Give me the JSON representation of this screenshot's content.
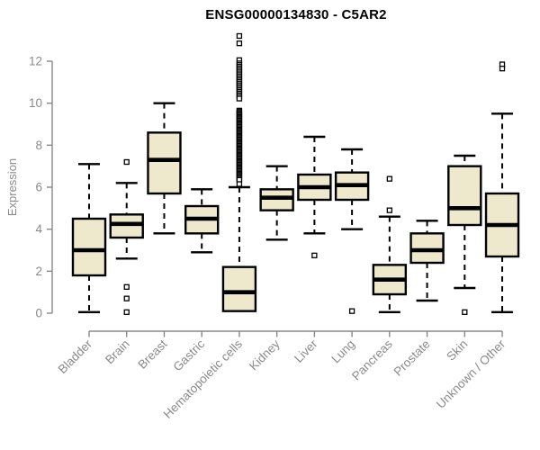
{
  "colors": {
    "box_fill": "#EEE8CD",
    "box_stroke": "#000000",
    "median_color": "#000000",
    "axis_color": "#888888",
    "tick_label_color": "#8a8a8a",
    "title_color": "#000000",
    "background": "#FFFFFF",
    "outlier_fill": "#FFFFFF"
  },
  "chart_data": {
    "type": "boxplot",
    "title": "ENSG00000134830 - C5AR2",
    "xlabel": "",
    "ylabel": "Expression",
    "ylim": [
      0,
      13.3
    ],
    "y_ticks": [
      0,
      2,
      4,
      6,
      8,
      10,
      12
    ],
    "grid": false,
    "legend": null,
    "categories": [
      "Bladder",
      "Brain",
      "Breast",
      "Gastric",
      "Hematopoietic cells",
      "Kidney",
      "Liver",
      "Lung",
      "Pancreas",
      "Prostate",
      "Skin",
      "Unknown / Other"
    ],
    "boxes": [
      {
        "category": "Bladder",
        "whisker_low": 0.05,
        "q1": 1.8,
        "median": 3.0,
        "q3": 4.5,
        "whisker_high": 7.1,
        "outliers": []
      },
      {
        "category": "Brain",
        "whisker_low": 2.6,
        "q1": 3.6,
        "median": 4.25,
        "q3": 4.7,
        "whisker_high": 6.2,
        "outliers": [
          7.2,
          1.25,
          0.7,
          0.05
        ]
      },
      {
        "category": "Breast",
        "whisker_low": 3.8,
        "q1": 5.7,
        "median": 7.3,
        "q3": 8.6,
        "whisker_high": 10.0,
        "outliers": []
      },
      {
        "category": "Gastric",
        "whisker_low": 2.9,
        "q1": 3.8,
        "median": 4.5,
        "q3": 5.1,
        "whisker_high": 5.9,
        "outliers": []
      },
      {
        "category": "Hematopoietic cells",
        "whisker_low": 0.1,
        "q1": 0.1,
        "median": 1.0,
        "q3": 2.2,
        "whisker_high": 6.0,
        "outliers": [
          13.2,
          12.85,
          12.05,
          11.9,
          11.82,
          11.74,
          11.66,
          11.58,
          11.5,
          11.42,
          11.34,
          11.26,
          11.18,
          11.1,
          11.02,
          10.94,
          10.86,
          10.78,
          10.7,
          10.62,
          10.54,
          10.46,
          10.38,
          10.3,
          10.22,
          9.65,
          9.59,
          9.53,
          9.47,
          9.41,
          9.35,
          9.29,
          9.23,
          9.17,
          9.11,
          9.05,
          8.99,
          8.93,
          8.87,
          8.81,
          8.75,
          8.69,
          8.63,
          8.57,
          8.51,
          8.45,
          8.39,
          8.33,
          8.27,
          8.21,
          8.15,
          8.09,
          8.03,
          7.97,
          7.91,
          7.85,
          7.79,
          7.73,
          7.67,
          7.61,
          7.55,
          7.49,
          7.43,
          7.37,
          7.31,
          7.25,
          7.19,
          7.13,
          7.07,
          7.01,
          6.95,
          6.89,
          6.83,
          6.77,
          6.71,
          6.65,
          6.59,
          6.53,
          6.47,
          6.41,
          6.35,
          6.15
        ]
      },
      {
        "category": "Kidney",
        "whisker_low": 3.5,
        "q1": 4.9,
        "median": 5.5,
        "q3": 5.9,
        "whisker_high": 7.0,
        "outliers": []
      },
      {
        "category": "Liver",
        "whisker_low": 3.8,
        "q1": 5.4,
        "median": 6.0,
        "q3": 6.6,
        "whisker_high": 8.4,
        "outliers": [
          2.75
        ]
      },
      {
        "category": "Lung",
        "whisker_low": 4.0,
        "q1": 5.4,
        "median": 6.1,
        "q3": 6.7,
        "whisker_high": 7.8,
        "outliers": [
          0.1
        ]
      },
      {
        "category": "Pancreas",
        "whisker_low": 0.05,
        "q1": 0.9,
        "median": 1.6,
        "q3": 2.3,
        "whisker_high": 4.6,
        "outliers": [
          6.4,
          4.9
        ]
      },
      {
        "category": "Prostate",
        "whisker_low": 0.6,
        "q1": 2.4,
        "median": 3.0,
        "q3": 3.8,
        "whisker_high": 4.4,
        "outliers": []
      },
      {
        "category": "Skin",
        "whisker_low": 1.2,
        "q1": 4.2,
        "median": 5.0,
        "q3": 7.0,
        "whisker_high": 7.5,
        "outliers": [
          0.05
        ]
      },
      {
        "category": "Unknown / Other",
        "whisker_low": 0.05,
        "q1": 2.7,
        "median": 4.2,
        "q3": 5.7,
        "whisker_high": 9.5,
        "outliers": [
          11.85,
          11.65
        ]
      }
    ]
  }
}
